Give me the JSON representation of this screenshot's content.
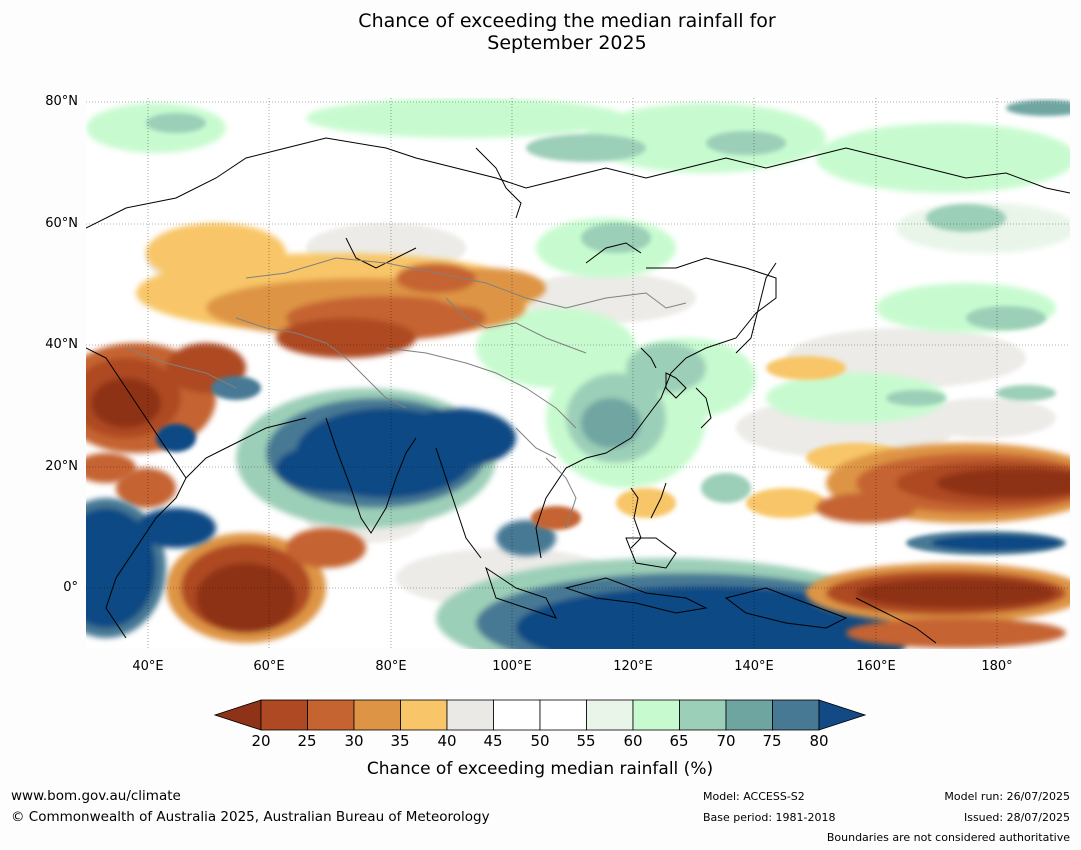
{
  "title": "Chance of exceeding the median rainfall for\nSeptember 2025",
  "map": {
    "latitude_labels": [
      "80°N",
      "60°N",
      "40°N",
      "20°N",
      "0°"
    ],
    "longitude_labels": [
      "40°E",
      "60°E",
      "80°E",
      "100°E",
      "120°E",
      "140°E",
      "160°E",
      "180°"
    ],
    "lat_range_deg": [
      -10,
      80
    ],
    "lon_range_deg": [
      30,
      192
    ],
    "gridlines": true
  },
  "colorbar": {
    "ticks": [
      "20",
      "25",
      "30",
      "35",
      "40",
      "45",
      "50",
      "55",
      "60",
      "65",
      "70",
      "75",
      "80"
    ],
    "colors": {
      "below_20": "#8e3218",
      "c20_25": "#ae4923",
      "c25_30": "#c56430",
      "c30_35": "#de9445",
      "c35_40": "#f8c668",
      "c40_45": "#ebe9e5",
      "c45_50": "#ffffff",
      "c50_55": "#ffffff",
      "c55_60": "#e8f5e8",
      "c60_65": "#c7fbcf",
      "c65_70": "#9ccfb8",
      "c70_75": "#6fa5a1",
      "c75_80": "#477994",
      "above_80": "#114a84"
    },
    "label": "Chance of exceeding median rainfall (%)",
    "extend": "both"
  },
  "footer": {
    "website": "www.bom.gov.au/climate",
    "copyright": "© Commonwealth of Australia 2025, Australian Bureau of Meteorology",
    "model": "Model: ACCESS-S2",
    "base_period": "Base period: 1981-2018",
    "model_run": "Model run: 26/07/2025",
    "issued": "Issued: 28/07/2025",
    "disclaimer": "Boundaries are not considered authoritative"
  }
}
